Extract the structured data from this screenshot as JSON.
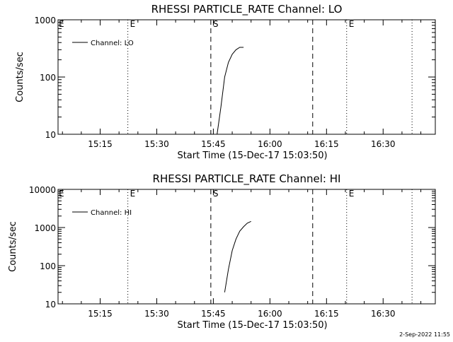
{
  "footer": {
    "timestamp": "2-Sep-2022 11:55"
  },
  "chart_data": [
    {
      "type": "line",
      "title": "RHESSI PARTICLE_RATE Channel: LO",
      "xlabel": "Start Time (15-Dec-17 15:03:50)",
      "ylabel": "Counts/sec",
      "yscale": "log",
      "ylim": [
        10,
        1000
      ],
      "xlim": [
        "15:03:50",
        "16:43:50"
      ],
      "xticks": [
        "15:15",
        "15:30",
        "15:45",
        "16:00",
        "16:15",
        "16:30"
      ],
      "yticks": [
        "10",
        "100",
        "1000"
      ],
      "legend": {
        "position": "top-left",
        "label": "Channel: LO"
      },
      "series": [
        {
          "name": "Channel: LO",
          "x": [
            "15:46:00",
            "15:47:00",
            "15:48:00",
            "15:49:00",
            "15:50:00",
            "15:51:00",
            "15:52:00",
            "15:53:00"
          ],
          "y": [
            10,
            30,
            100,
            180,
            250,
            300,
            330,
            330
          ]
        }
      ],
      "vlines": [
        {
          "time": "15:22:20",
          "style": "dotted",
          "label": "E"
        },
        {
          "time": "15:44:20",
          "style": "dashed",
          "label": "S"
        },
        {
          "time": "16:11:20",
          "style": "dashed",
          "label": ""
        },
        {
          "time": "16:20:20",
          "style": "dotted",
          "label": "E"
        },
        {
          "time": "16:37:40",
          "style": "dotted",
          "label": ""
        }
      ],
      "corner_label": "E"
    },
    {
      "type": "line",
      "title": "RHESSI PARTICLE_RATE Channel: HI",
      "xlabel": "Start Time (15-Dec-17 15:03:50)",
      "ylabel": "Counts/sec",
      "yscale": "log",
      "ylim": [
        10,
        10000
      ],
      "xlim": [
        "15:03:50",
        "16:43:50"
      ],
      "xticks": [
        "15:15",
        "15:30",
        "15:45",
        "16:00",
        "16:15",
        "16:30"
      ],
      "yticks": [
        "10",
        "100",
        "1000",
        "10000"
      ],
      "legend": {
        "position": "top-left",
        "label": "Channel: HI"
      },
      "series": [
        {
          "name": "Channel: HI",
          "x": [
            "15:48:00",
            "15:49:00",
            "15:50:00",
            "15:51:00",
            "15:52:00",
            "15:53:00",
            "15:54:00",
            "15:55:00"
          ],
          "y": [
            20,
            80,
            250,
            500,
            800,
            1050,
            1300,
            1450
          ]
        }
      ],
      "vlines": [
        {
          "time": "15:22:20",
          "style": "dotted",
          "label": "E"
        },
        {
          "time": "15:44:20",
          "style": "dashed",
          "label": "S"
        },
        {
          "time": "16:11:20",
          "style": "dashed",
          "label": ""
        },
        {
          "time": "16:20:20",
          "style": "dotted",
          "label": "E"
        },
        {
          "time": "16:37:40",
          "style": "dotted",
          "label": ""
        }
      ],
      "corner_label": "E"
    }
  ]
}
